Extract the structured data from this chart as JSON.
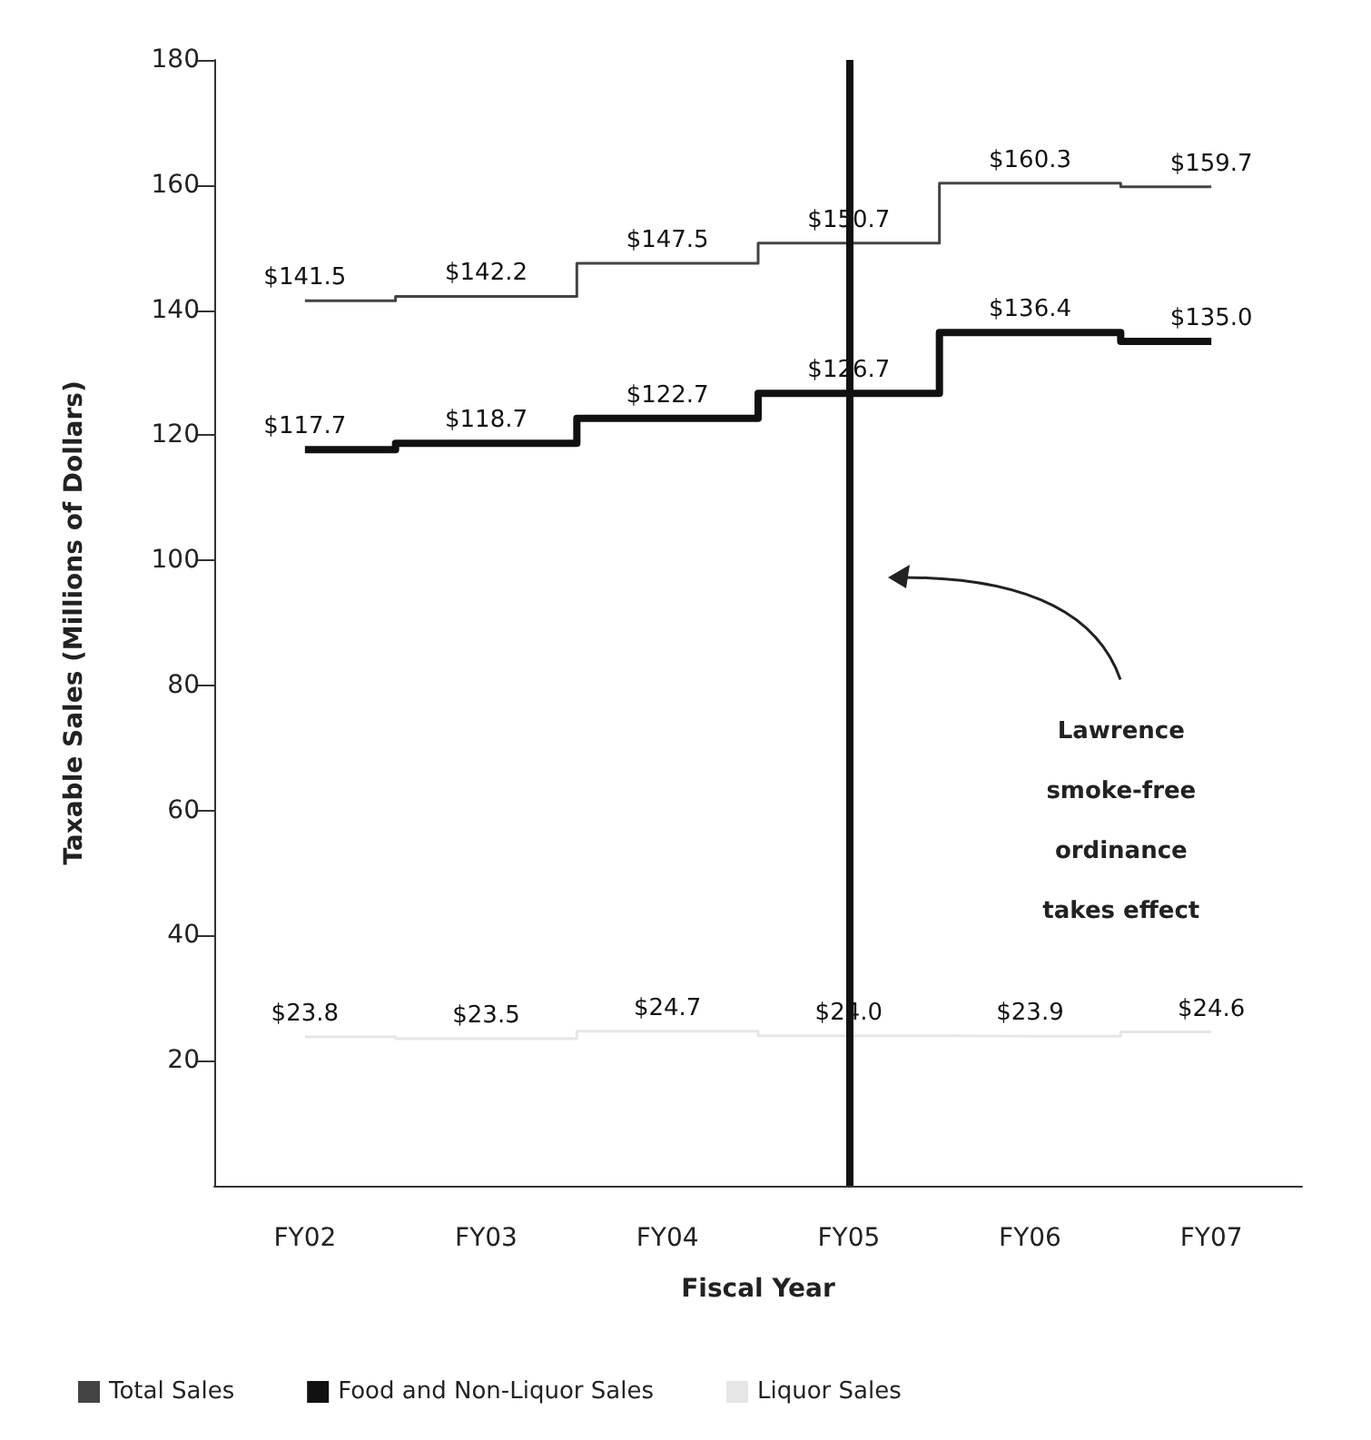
{
  "chart_data": {
    "type": "step",
    "xlabel": "Fiscal Year",
    "ylabel": "Taxable Sales (Millions of Dollars)",
    "categories": [
      "FY02",
      "FY03",
      "FY04",
      "FY05",
      "FY06",
      "FY07"
    ],
    "ylim": [
      0,
      180
    ],
    "yticks": [
      20,
      40,
      60,
      80,
      100,
      120,
      140,
      160,
      180
    ],
    "series": [
      {
        "name": "Total Sales",
        "color": "#444444",
        "values": [
          141.5,
          142.2,
          147.5,
          150.7,
          160.3,
          159.7
        ],
        "value_labels": [
          "$141.5",
          "$142.2",
          "$147.5",
          "$150.7",
          "$160.3",
          "$159.7"
        ]
      },
      {
        "name": "Food and Non-Liquor Sales",
        "color": "#111111",
        "values": [
          117.7,
          118.7,
          122.7,
          126.7,
          136.4,
          135.0
        ],
        "value_labels": [
          "$117.7",
          "$118.7",
          "$122.7",
          "$126.7",
          "$136.4",
          "$135.0"
        ]
      },
      {
        "name": "Liquor Sales",
        "color": "#e6e6e6",
        "values": [
          23.8,
          23.5,
          24.7,
          24.0,
          23.9,
          24.6
        ],
        "value_labels": [
          "$23.8",
          "$23.5",
          "$24.7",
          "$24.0",
          "$23.9",
          "$24.6"
        ]
      }
    ],
    "ref_lines": [
      {
        "axis": "x",
        "value": "FY05",
        "label": "Lawrence\nsmoke-free\nordinance\ntakes effect",
        "color": "#111111"
      }
    ],
    "legend": "bottom left",
    "marker": "none"
  }
}
